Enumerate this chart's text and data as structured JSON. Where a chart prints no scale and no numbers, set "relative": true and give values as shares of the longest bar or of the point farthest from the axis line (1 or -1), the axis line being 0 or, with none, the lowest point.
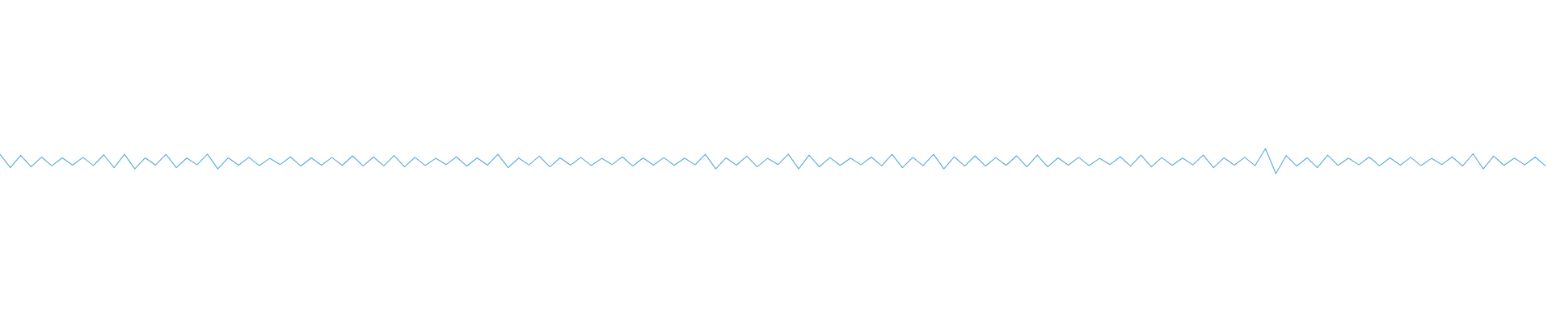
{
  "chart_data": {
    "type": "line",
    "relative": true,
    "categories": [
      null,
      null,
      null,
      null,
      null,
      null,
      null,
      null,
      null,
      null,
      null,
      null,
      null,
      null,
      null,
      null,
      null,
      null,
      null,
      null,
      null,
      null,
      null,
      null,
      null,
      null,
      null,
      null,
      null,
      null,
      null,
      null,
      null,
      null,
      null,
      null,
      null,
      null,
      null,
      null,
      null,
      null,
      null,
      null,
      null,
      null,
      null,
      null,
      null,
      null,
      null,
      null,
      null,
      null,
      null,
      null,
      null,
      null,
      null,
      null,
      null,
      null,
      null,
      null,
      null,
      null,
      null,
      null,
      null,
      null,
      null,
      null,
      null,
      null,
      null,
      null,
      null,
      null,
      null,
      null,
      null,
      null,
      null,
      null,
      null,
      null,
      null,
      null,
      null,
      null,
      null,
      null,
      null,
      null,
      null,
      null,
      null,
      null,
      null,
      null,
      null,
      null,
      null,
      null,
      null,
      null,
      null,
      null,
      null,
      null,
      null,
      null,
      null,
      null,
      null,
      null,
      null,
      null,
      null,
      null,
      null,
      null,
      null,
      null,
      null,
      null,
      null,
      null,
      null,
      null,
      null,
      null,
      null,
      null,
      null,
      null,
      null,
      null,
      null,
      null,
      null,
      null,
      null,
      null,
      null,
      null,
      null,
      null,
      null,
      null
    ],
    "series": [
      {
        "color": "#5aa9e0",
        "values": [
          0.77,
          0.24,
          0.73,
          0.27,
          0.66,
          0.31,
          0.63,
          0.34,
          0.65,
          0.32,
          0.75,
          0.24,
          0.77,
          0.19,
          0.63,
          0.34,
          0.77,
          0.24,
          0.62,
          0.35,
          0.78,
          0.19,
          0.63,
          0.34,
          0.65,
          0.32,
          0.61,
          0.36,
          0.67,
          0.3,
          0.63,
          0.34,
          0.64,
          0.33,
          0.71,
          0.3,
          0.66,
          0.31,
          0.72,
          0.27,
          0.65,
          0.32,
          0.61,
          0.36,
          0.67,
          0.3,
          0.63,
          0.34,
          0.77,
          0.24,
          0.62,
          0.35,
          0.7,
          0.27,
          0.63,
          0.34,
          0.65,
          0.32,
          0.61,
          0.36,
          0.67,
          0.3,
          0.63,
          0.34,
          0.64,
          0.33,
          0.62,
          0.35,
          0.77,
          0.19,
          0.63,
          0.34,
          0.7,
          0.27,
          0.61,
          0.36,
          0.78,
          0.19,
          0.74,
          0.27,
          0.64,
          0.33,
          0.62,
          0.35,
          0.66,
          0.31,
          0.77,
          0.24,
          0.65,
          0.32,
          0.77,
          0.19,
          0.67,
          0.3,
          0.71,
          0.3,
          0.64,
          0.33,
          0.71,
          0.27,
          0.74,
          0.27,
          0.63,
          0.34,
          0.65,
          0.32,
          0.61,
          0.36,
          0.67,
          0.3,
          0.74,
          0.27,
          0.64,
          0.33,
          0.62,
          0.35,
          0.74,
          0.24,
          0.63,
          0.34,
          0.65,
          0.32,
          1,
          0,
          0.72,
          0.3,
          0.63,
          0.24,
          0.74,
          0.33,
          0.62,
          0.35,
          0.66,
          0.31,
          0.63,
          0.34,
          0.65,
          0.32,
          0.61,
          0.36,
          0.67,
          0.3,
          0.79,
          0.19,
          0.7,
          0.33,
          0.62,
          0.35,
          0.66,
          0.31
        ]
      }
    ]
  }
}
